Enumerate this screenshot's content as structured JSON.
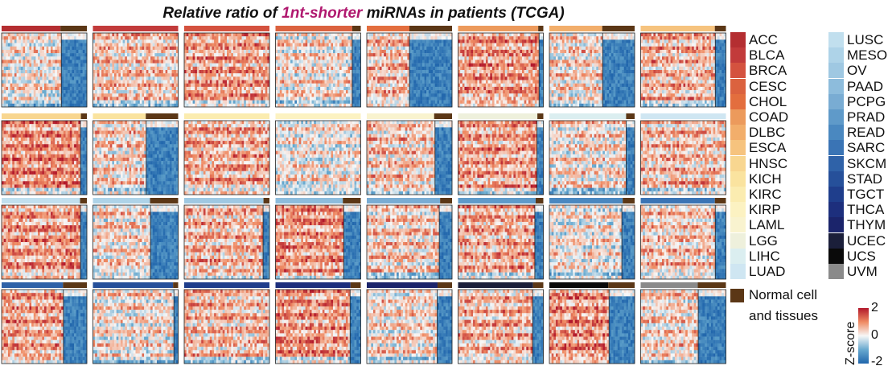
{
  "chart_data": {
    "type": "heatmap",
    "title": {
      "part1": "Relative ratio of ",
      "highlight": "1nt-shorter",
      "part2": " miRNAs in patients (TCGA)"
    },
    "panels": [
      {
        "name": "ACC",
        "color": "#b42e31",
        "normal": true
      },
      {
        "name": "BLCA",
        "color": "#c23b3b",
        "normal": false
      },
      {
        "name": "BRCA",
        "color": "#d4523f",
        "normal": false
      },
      {
        "name": "CESC",
        "color": "#db623f",
        "normal": true
      },
      {
        "name": "CHOL",
        "color": "#e36e3e",
        "normal": true
      },
      {
        "name": "COAD",
        "color": "#ec9a5c",
        "normal": true
      },
      {
        "name": "DLBC",
        "color": "#f2ae6b",
        "normal": true
      },
      {
        "name": "ESCA",
        "color": "#f6c37e",
        "normal": true
      },
      {
        "name": "HNSC",
        "color": "#f8d690",
        "normal": true
      },
      {
        "name": "KICH",
        "color": "#fae39f",
        "normal": true
      },
      {
        "name": "KIRC",
        "color": "#fbecb0",
        "normal": false
      },
      {
        "name": "KIRP",
        "color": "#fcf2c2",
        "normal": false
      },
      {
        "name": "LAML",
        "color": "#f9f3cf",
        "normal": true
      },
      {
        "name": "LGG",
        "color": "#eef0dc",
        "normal": true
      },
      {
        "name": "LIHC",
        "color": "#dbeef0",
        "normal": true
      },
      {
        "name": "LUAD",
        "color": "#cfe6f2",
        "normal": false
      },
      {
        "name": "LUSC",
        "color": "#c1dfee",
        "normal": true
      },
      {
        "name": "MESO",
        "color": "#aed3e8",
        "normal": true
      },
      {
        "name": "OV",
        "color": "#9fc8e2",
        "normal": true
      },
      {
        "name": "PAAD",
        "color": "#8dbcdc",
        "normal": true
      },
      {
        "name": "PCPG",
        "color": "#79acd3",
        "normal": true
      },
      {
        "name": "PRAD",
        "color": "#5f9ac9",
        "normal": true
      },
      {
        "name": "READ",
        "color": "#4a88c0",
        "normal": true
      },
      {
        "name": "SARC",
        "color": "#3a74b5",
        "normal": true
      },
      {
        "name": "SKCM",
        "color": "#2f62a8",
        "normal": true
      },
      {
        "name": "STAD",
        "color": "#26509a",
        "normal": true
      },
      {
        "name": "TGCT",
        "color": "#1f3e8c",
        "normal": false
      },
      {
        "name": "THCA",
        "color": "#1d2f7d",
        "normal": true
      },
      {
        "name": "THYM",
        "color": "#1b246b",
        "normal": true
      },
      {
        "name": "UCEC",
        "color": "#1b1f3a",
        "normal": true
      },
      {
        "name": "UCS",
        "color": "#0a0a0a",
        "normal": true
      },
      {
        "name": "UVM",
        "color": "#8a8a8a",
        "normal": true
      }
    ],
    "normal_label": [
      "Normal cell",
      "and tissues"
    ],
    "normal_color": "#5b3716",
    "colorbar": {
      "label": "Z-score",
      "ticks": [
        "2",
        "0",
        "-2"
      ],
      "range": [
        -2,
        2
      ],
      "colors": [
        "#2166ac",
        "#67a9cf",
        "#f7f7f7",
        "#ef8a62",
        "#b2182b"
      ]
    }
  }
}
